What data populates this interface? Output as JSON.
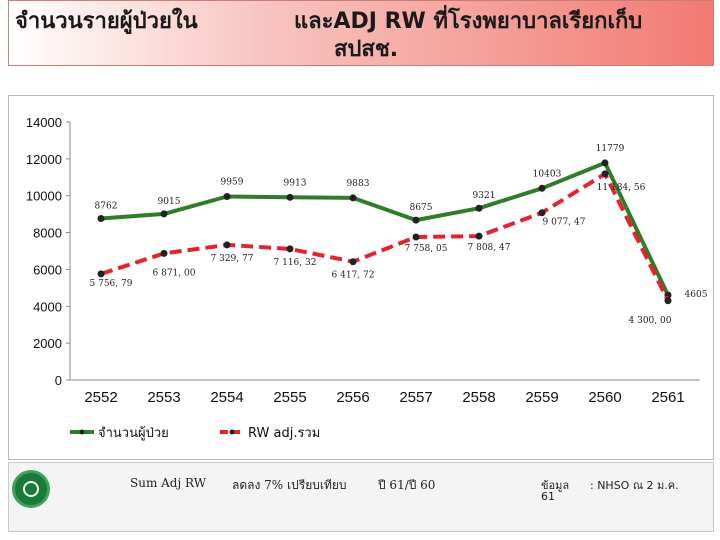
{
  "title": {
    "line1_left": "จำนวนรายผู้ป่วยใน",
    "line1_right": "และADJ RW ที่โรงพยาบาลเรียกเก็บ",
    "line2": "สปสช."
  },
  "chart_data": {
    "type": "line",
    "categories": [
      "2552",
      "2553",
      "2554",
      "2555",
      "2556",
      "2557",
      "2558",
      "2559",
      "2560",
      "2561"
    ],
    "ylim": [
      0,
      14000
    ],
    "yticks": [
      "0",
      "2000",
      "4000",
      "6000",
      "8000",
      "10000",
      "12000",
      "14000"
    ],
    "series": [
      {
        "name": "จำนวนผู้ป่วย",
        "color": "#2f7d2a",
        "values": [
          8762,
          9015,
          9959,
          9913,
          9883,
          8675,
          9321,
          10403,
          11779,
          4605
        ],
        "labels": [
          "8762",
          "9015",
          "9959",
          "9913",
          "9883",
          "8675",
          "9321",
          "10403",
          "11779",
          "4605"
        ]
      },
      {
        "name": "RW adj.รวม",
        "color": "#e3242b",
        "dashed": true,
        "values": [
          5756.79,
          6871.0,
          7329.77,
          7116.32,
          6417.72,
          7758.05,
          7808.47,
          9077.47,
          11184.56,
          4300.0
        ],
        "labels": [
          "5 756, 79",
          "6 871, 00",
          "7 329, 77",
          "7 116, 32",
          "6 417, 72",
          "7 758, 05",
          "7 808, 47",
          "9 077, 47",
          "11 184, 56",
          "4 300, 00"
        ]
      }
    ],
    "legend_position": "bottom-left"
  },
  "footer": {
    "sum_label": "Sum Adj RW",
    "change_text": "ลดลง 7% เปรียบเทียบ",
    "compare_text": "ปี 61/ปี 60",
    "source_line1": "ข้อมูล",
    "source_line1b": ": NHSO ณ 2 ม.ค.",
    "source_line2": "61"
  },
  "colors": {
    "title_gradient_end": "#f27a72",
    "green": "#2f7d2a",
    "red": "#e3242b"
  }
}
